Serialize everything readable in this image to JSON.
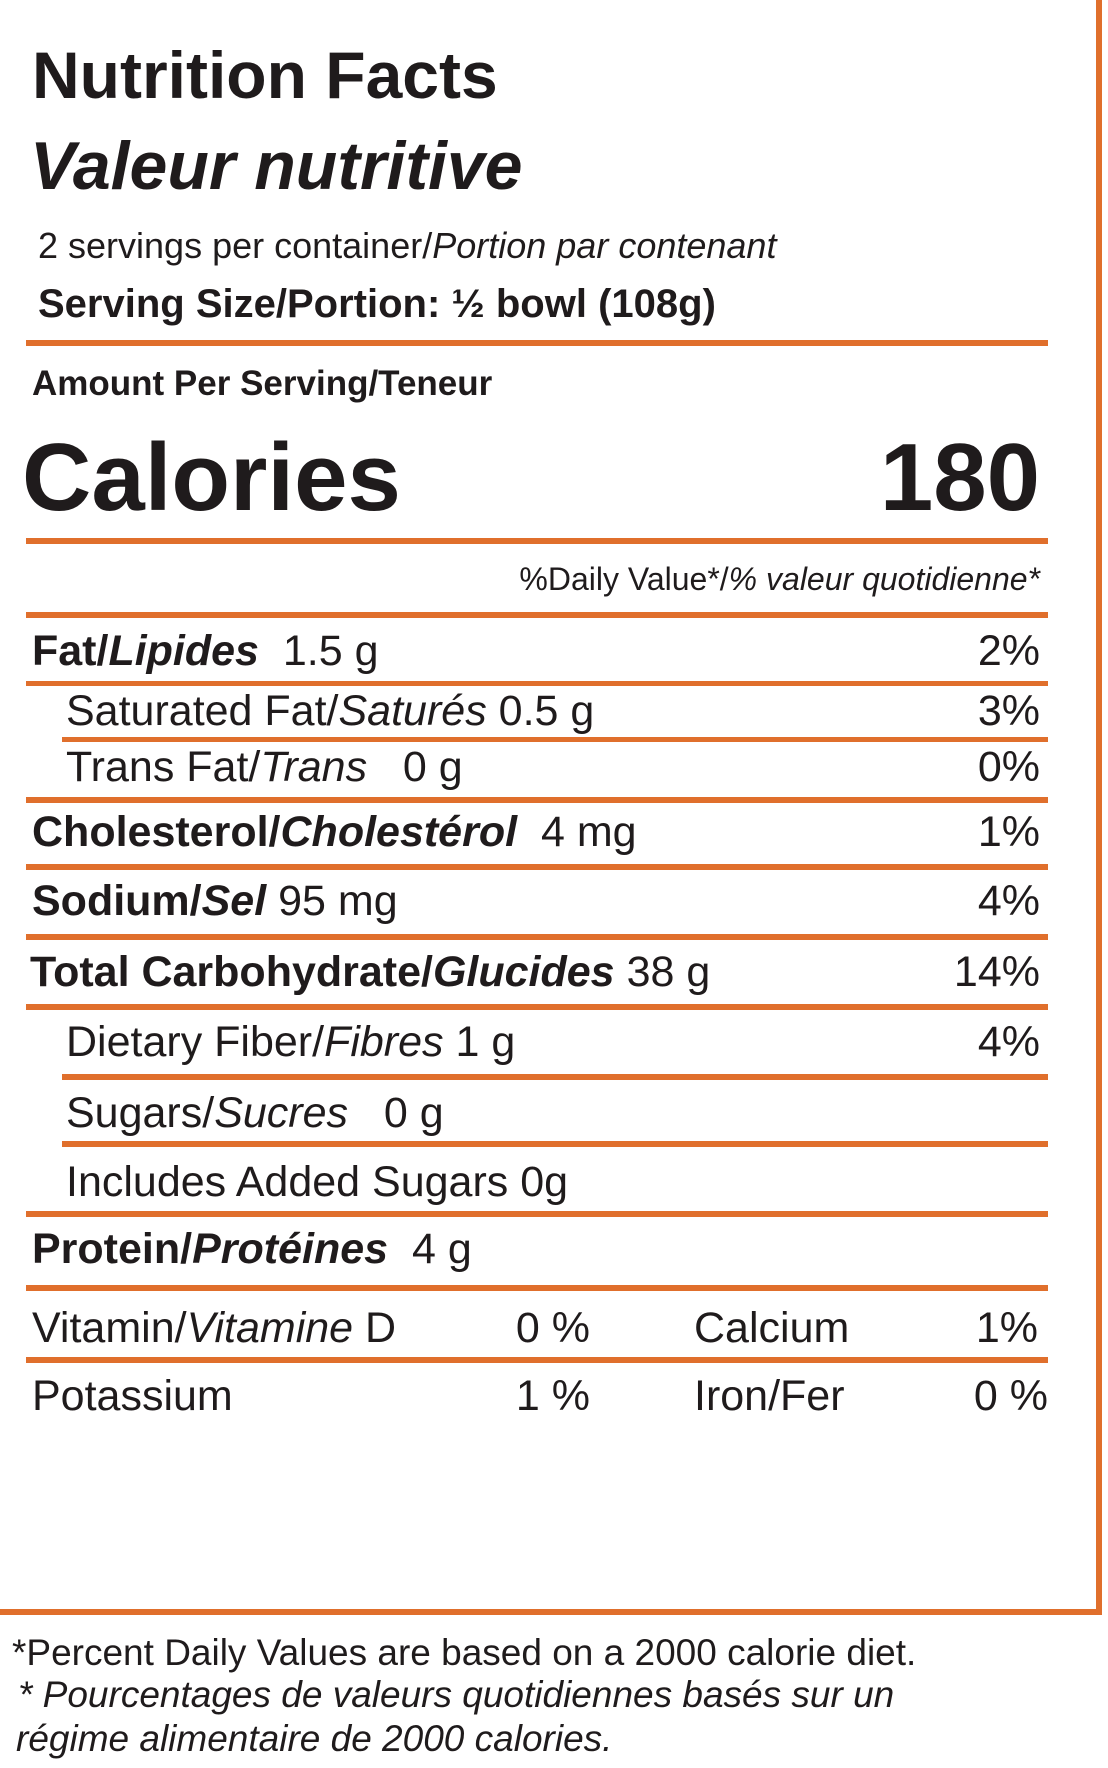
{
  "header": {
    "title_en": "Nutrition Facts",
    "title_fr": "Valeur nutritive",
    "servings_en": "2 servings per container/",
    "servings_fr": "Portion par contenant",
    "serving_size": "Serving Size/Portion: ½ bowl (108g)"
  },
  "amount_per_serving": "Amount Per Serving/Teneur",
  "calories": {
    "label": "Calories",
    "value": "180"
  },
  "daily_value_header": {
    "en": "%Daily Value*/",
    "fr": "% valeur quotidienne*"
  },
  "nutrients": {
    "fat": {
      "en": "Fat/",
      "fr": "Lipides",
      "amount": "1.5 g",
      "dv": "2%"
    },
    "saturated_fat": {
      "en": "Saturated Fat/",
      "fr": "Saturés",
      "amount": "0.5 g",
      "dv": "3%"
    },
    "trans_fat": {
      "en": "Trans Fat/",
      "fr": "Trans",
      "amount": "0 g",
      "dv": "0%"
    },
    "cholesterol": {
      "en": "Cholesterol/",
      "fr": "Cholestérol",
      "amount": "4 mg",
      "dv": "1%"
    },
    "sodium": {
      "en": "Sodium/",
      "fr": "Sel",
      "amount": "95 mg",
      "dv": "4%"
    },
    "carbohydrate": {
      "en": "Total Carbohydrate/",
      "fr": "Glucides",
      "amount": "38 g",
      "dv": "14%"
    },
    "fiber": {
      "en": "Dietary Fiber/",
      "fr": "Fibres",
      "amount": "1 g",
      "dv": "4%"
    },
    "sugars": {
      "en": "Sugars/",
      "fr": "Sucres",
      "amount": "0 g"
    },
    "added_sugars": {
      "label": "Includes Added Sugars 0g"
    },
    "protein": {
      "en": "Protein/",
      "fr": "Protéines",
      "amount": "4 g"
    }
  },
  "minerals": {
    "vitamin_d": {
      "en": "Vitamin/",
      "fr": "Vitamine",
      "suffix": "D",
      "value": "0 %"
    },
    "calcium": {
      "label": "Calcium",
      "value": "1%"
    },
    "potassium": {
      "label": "Potassium",
      "value": "1 %"
    },
    "iron": {
      "label": "Iron/Fer",
      "value": "0 %"
    }
  },
  "footnote": {
    "en": "*Percent Daily Values are based on a 2000 calorie diet.",
    "fr_line1": "* Pourcentages de valeurs quotidiennes basés sur un",
    "fr_line2": "régime alimentaire de 2000 calories."
  },
  "colors": {
    "accent": "#e06f2c",
    "text": "#1f1b1c"
  }
}
